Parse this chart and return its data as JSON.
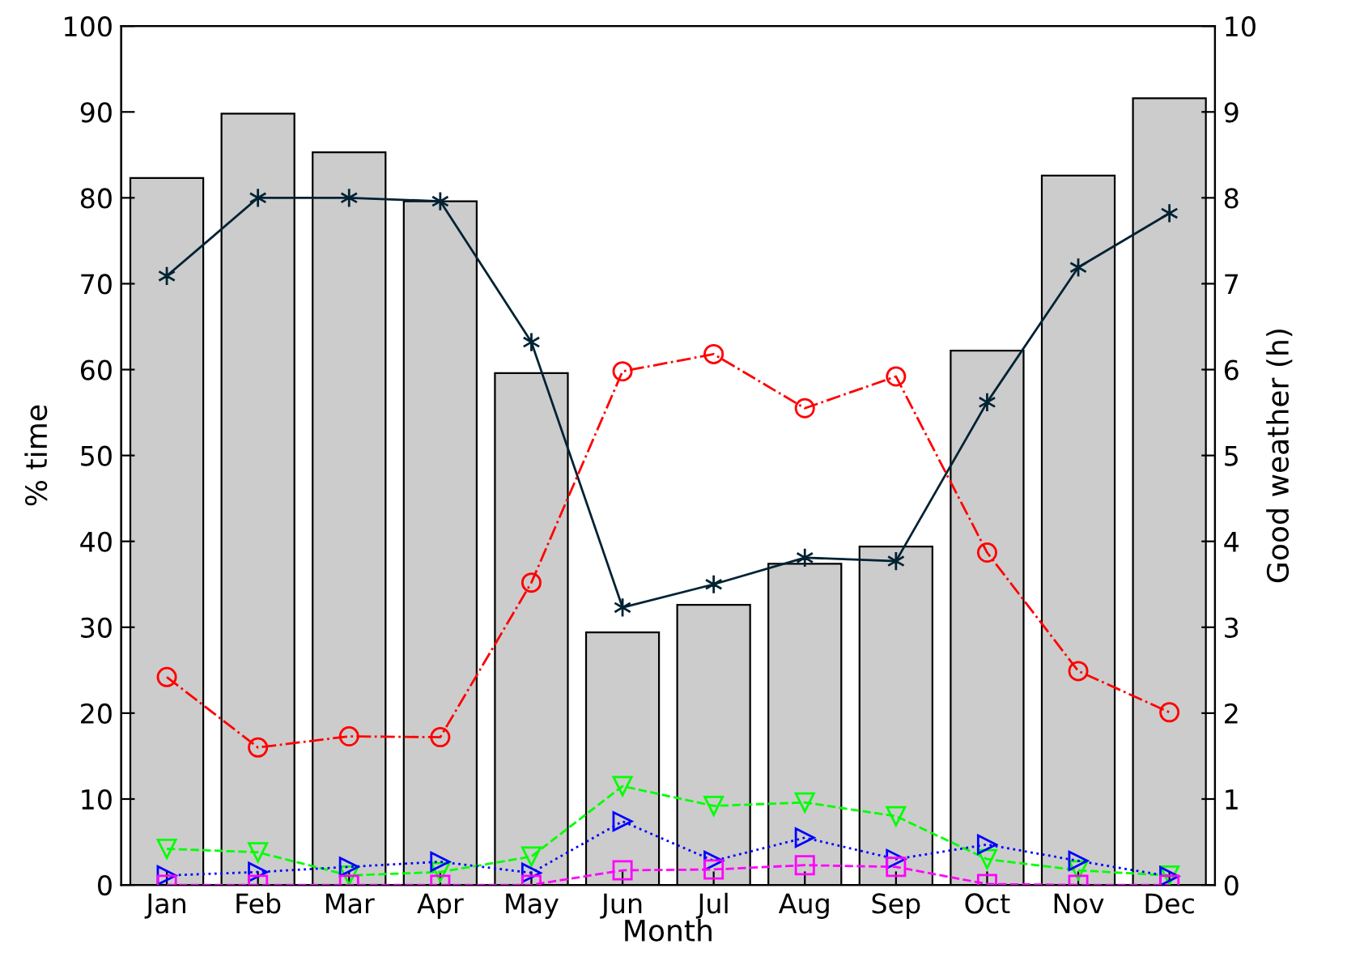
{
  "chart_data": {
    "type": "line",
    "xlabel": "Month",
    "ylabel": "% time",
    "y2label": "Good weather (h)",
    "categories": [
      "Jan",
      "Feb",
      "Mar",
      "Apr",
      "May",
      "Jun",
      "Jul",
      "Aug",
      "Sep",
      "Oct",
      "Nov",
      "Dec"
    ],
    "series": [
      {
        "type": "bar",
        "axis": "y2",
        "color": "#cccccc",
        "values": [
          8.23,
          8.98,
          8.53,
          7.96,
          5.96,
          2.94,
          3.26,
          3.74,
          3.94,
          6.22,
          8.26,
          9.16
        ]
      },
      {
        "color": "#002233",
        "marker": "cross",
        "line_style": "solid",
        "values": [
          70.9,
          80.0,
          80.0,
          79.6,
          63.2,
          32.3,
          35.0,
          38.1,
          37.7,
          56.2,
          71.9,
          78.2
        ]
      },
      {
        "color": "#ff0000",
        "marker": "circle",
        "line_style": "dashdot",
        "values": [
          24.2,
          16.0,
          17.3,
          17.2,
          35.2,
          59.8,
          61.8,
          55.5,
          59.2,
          38.7,
          24.9,
          20.1
        ]
      },
      {
        "color": "#00ff00",
        "marker": "triangle_down",
        "line_style": "dashed",
        "values": [
          4.2,
          3.8,
          1.1,
          1.5,
          3.3,
          11.5,
          9.2,
          9.6,
          8.0,
          3.0,
          1.7,
          1.1
        ]
      },
      {
        "color": "#0000ff",
        "marker": "triangle_right",
        "line_style": "dotted",
        "values": [
          1.1,
          1.5,
          2.1,
          2.7,
          1.4,
          7.4,
          2.8,
          5.5,
          3.0,
          4.7,
          2.8,
          1.0
        ]
      },
      {
        "color": "#ff00ff",
        "marker": "square",
        "line_style": "dashed",
        "values": [
          0,
          0,
          0,
          0,
          0,
          1.7,
          1.8,
          2.3,
          2.1,
          0.1,
          0,
          0
        ]
      }
    ],
    "ylim": [
      0,
      100
    ],
    "yticks": [
      0,
      10,
      20,
      30,
      40,
      50,
      60,
      70,
      80,
      90,
      100
    ],
    "y2lim": [
      0,
      10
    ],
    "y2ticks": [
      0,
      1,
      2,
      3,
      4,
      5,
      6,
      7,
      8,
      9,
      10
    ],
    "grid": false
  }
}
